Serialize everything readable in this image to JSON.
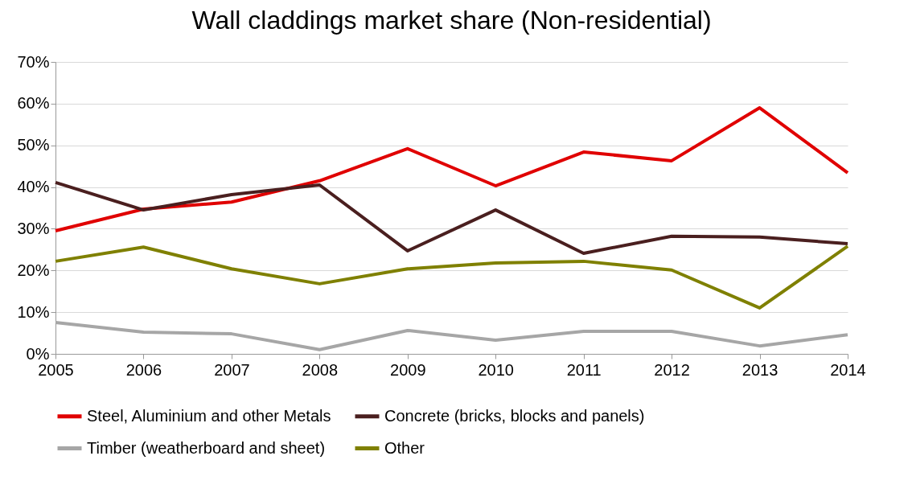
{
  "chart_data": {
    "type": "line",
    "title": "Wall claddings market share (Non-residential)",
    "x": [
      2005,
      2006,
      2007,
      2008,
      2009,
      2010,
      2011,
      2012,
      2013,
      2014
    ],
    "xlim": [
      2005,
      2014
    ],
    "xticks": [
      2005,
      2006,
      2007,
      2008,
      2009,
      2010,
      2011,
      2012,
      2013,
      2014
    ],
    "ylim": [
      0,
      70
    ],
    "yticks": [
      {
        "value": 0,
        "label": "0%"
      },
      {
        "value": 10,
        "label": "10%"
      },
      {
        "value": 20,
        "label": "20%"
      },
      {
        "value": 30,
        "label": "30%"
      },
      {
        "value": 40,
        "label": "40%"
      },
      {
        "value": 50,
        "label": "50%"
      },
      {
        "value": 60,
        "label": "60%"
      },
      {
        "value": 70,
        "label": "70%"
      }
    ],
    "grid": "y",
    "legend": "bottom",
    "marker": "none",
    "line_style": "solid",
    "series": [
      {
        "name": "Steel, Aluminium and other Metals",
        "color": "#e00000",
        "values": [
          29.5,
          34.7,
          36.4,
          41.5,
          49.2,
          40.3,
          48.4,
          46.3,
          59.0,
          43.4
        ]
      },
      {
        "name": "Concrete (bricks, blocks and panels)",
        "color": "#4a1f1f",
        "values": [
          41.1,
          34.5,
          38.2,
          40.5,
          24.7,
          34.5,
          24.1,
          28.2,
          28.0,
          26.4
        ]
      },
      {
        "name": "Timber (weatherboard and sheet)",
        "color": "#a6a6a6",
        "values": [
          7.5,
          5.2,
          4.8,
          1.0,
          5.6,
          3.3,
          5.4,
          5.4,
          1.9,
          4.6
        ]
      },
      {
        "name": "Other",
        "color": "#7f8000",
        "values": [
          22.2,
          25.6,
          20.4,
          16.8,
          20.4,
          21.8,
          22.2,
          20.1,
          11.0,
          25.8
        ]
      }
    ]
  }
}
